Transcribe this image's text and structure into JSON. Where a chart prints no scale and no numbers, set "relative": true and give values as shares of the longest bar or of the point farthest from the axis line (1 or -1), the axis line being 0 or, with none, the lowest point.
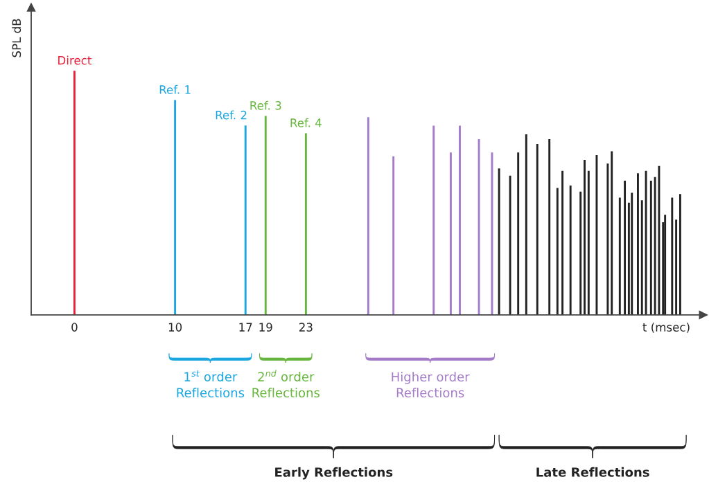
{
  "chart_data": {
    "type": "bar",
    "relative": true,
    "xlabel": "t (msec)",
    "ylabel": "SPL dB",
    "xlim": [
      -4.3,
      62.5
    ],
    "xticks": [
      0,
      10,
      17,
      19,
      23
    ],
    "series": [
      {
        "name": "Direct",
        "color": "#e8203a",
        "x": [
          0
        ],
        "values": [
          1.0
        ]
      },
      {
        "name": "Ref. 1",
        "color": "#1ba6e0",
        "x": [
          10
        ],
        "values": [
          0.88
        ]
      },
      {
        "name": "Ref. 2",
        "color": "#1ba6e0",
        "x": [
          17
        ],
        "values": [
          0.776
        ]
      },
      {
        "name": "Ref. 3",
        "color": "#66b53c",
        "x": [
          19
        ],
        "values": [
          0.815
        ]
      },
      {
        "name": "Ref. 4",
        "color": "#66b53c",
        "x": [
          23
        ],
        "values": [
          0.744
        ]
      },
      {
        "color": "#a47bc8",
        "x": [
          29.2,
          31.7,
          35.7,
          37.4,
          38.3,
          40.2,
          41.5
        ],
        "values": [
          0.81,
          0.65,
          0.775,
          0.665,
          0.775,
          0.72,
          0.665
        ]
      },
      {
        "color": "#222222",
        "x": [
          42.2,
          43.3,
          44.1,
          44.9,
          46.0,
          47.2,
          48.0,
          48.5,
          49.3,
          50.3,
          50.7,
          51.1,
          51.9,
          53.0,
          53.4,
          54.2,
          54.7,
          55.1,
          55.4,
          56.0,
          56.4,
          56.8,
          57.3,
          57.7,
          58.1,
          58.5,
          58.7,
          59.4,
          59.8,
          60.2
        ],
        "values": [
          0.6,
          0.57,
          0.665,
          0.74,
          0.7,
          0.72,
          0.52,
          0.59,
          0.53,
          0.505,
          0.635,
          0.59,
          0.655,
          0.62,
          0.67,
          0.48,
          0.55,
          0.46,
          0.5,
          0.58,
          0.47,
          0.59,
          0.55,
          0.565,
          0.61,
          0.38,
          0.41,
          0.48,
          0.39,
          0.495
        ]
      }
    ],
    "annotations": [
      "1$^{st}$ order\nReflections",
      "2$^{nd}$ order\nReflections",
      "Higher order\nReflections",
      "Early Reflections",
      "Late Reflections"
    ]
  }
}
